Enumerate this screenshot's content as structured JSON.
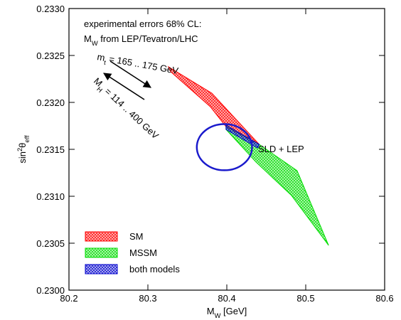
{
  "chart_data": {
    "type": "region",
    "xlabel": [
      {
        "t": "M"
      },
      {
        "t": "W",
        "sub": true
      },
      {
        "t": " [GeV]"
      }
    ],
    "ylabel": [
      {
        "t": "sin"
      },
      {
        "t": "2",
        "sup": true
      },
      {
        "t": "θ"
      },
      {
        "t": "eff",
        "sub": true
      }
    ],
    "xlim": [
      80.2,
      80.6
    ],
    "ylim": [
      0.23,
      0.233
    ],
    "xticks": [
      80.2,
      80.3,
      80.4,
      80.5,
      80.6
    ],
    "yticks": [
      {
        "value": 0.23,
        "label": "0.2300"
      },
      0.2305,
      {
        "value": 0.231,
        "label": "0.2310"
      },
      0.2315,
      {
        "value": 0.232,
        "label": "0.2320"
      },
      0.2325,
      {
        "value": 0.233,
        "label": "0.2330"
      }
    ],
    "annotations": [
      {
        "parts": [
          {
            "t": "experimental errors 68% CL:"
          }
        ]
      },
      {
        "parts": [
          {
            "t": "M"
          },
          {
            "t": "W",
            "sub": true
          },
          {
            "t": " from LEP/Tevatron/LHC"
          }
        ]
      },
      {
        "parts": [
          {
            "t": "m"
          },
          {
            "t": "t",
            "sub": true
          },
          {
            "t": " = 165 .. 175 GeV"
          }
        ]
      },
      {
        "parts": [
          {
            "t": "M"
          },
          {
            "t": "H",
            "sub": true
          },
          {
            "t": " = 114 .. 400 GeV"
          }
        ]
      }
    ],
    "series": [
      {
        "name": "SM",
        "color": "#ff0000",
        "x": [
          80.326,
          80.381,
          80.441,
          80.399,
          80.379,
          80.329
        ],
        "y": [
          0.232379,
          0.232098,
          0.231553,
          0.231742,
          0.231955,
          0.232326
        ]
      },
      {
        "name": "MSSM",
        "color": "#00dd00",
        "x": [
          80.399,
          80.441,
          80.489,
          80.529,
          80.482,
          80.437,
          80.399
        ],
        "y": [
          0.231758,
          0.231553,
          0.231273,
          0.230477,
          0.231008,
          0.231364,
          0.231712
        ]
      },
      {
        "name": "both models",
        "color": "#0000cc",
        "x": [
          80.399,
          80.441,
          80.439,
          80.399
        ],
        "y": [
          0.231758,
          0.231553,
          0.231515,
          0.231712
        ]
      }
    ],
    "ellipse": {
      "name": "SLD + LEP",
      "color": "#1a1acc",
      "center_x": 80.397,
      "center_y": 0.231523,
      "radius_x": 0.035,
      "radius_y": 0.000246
    }
  }
}
